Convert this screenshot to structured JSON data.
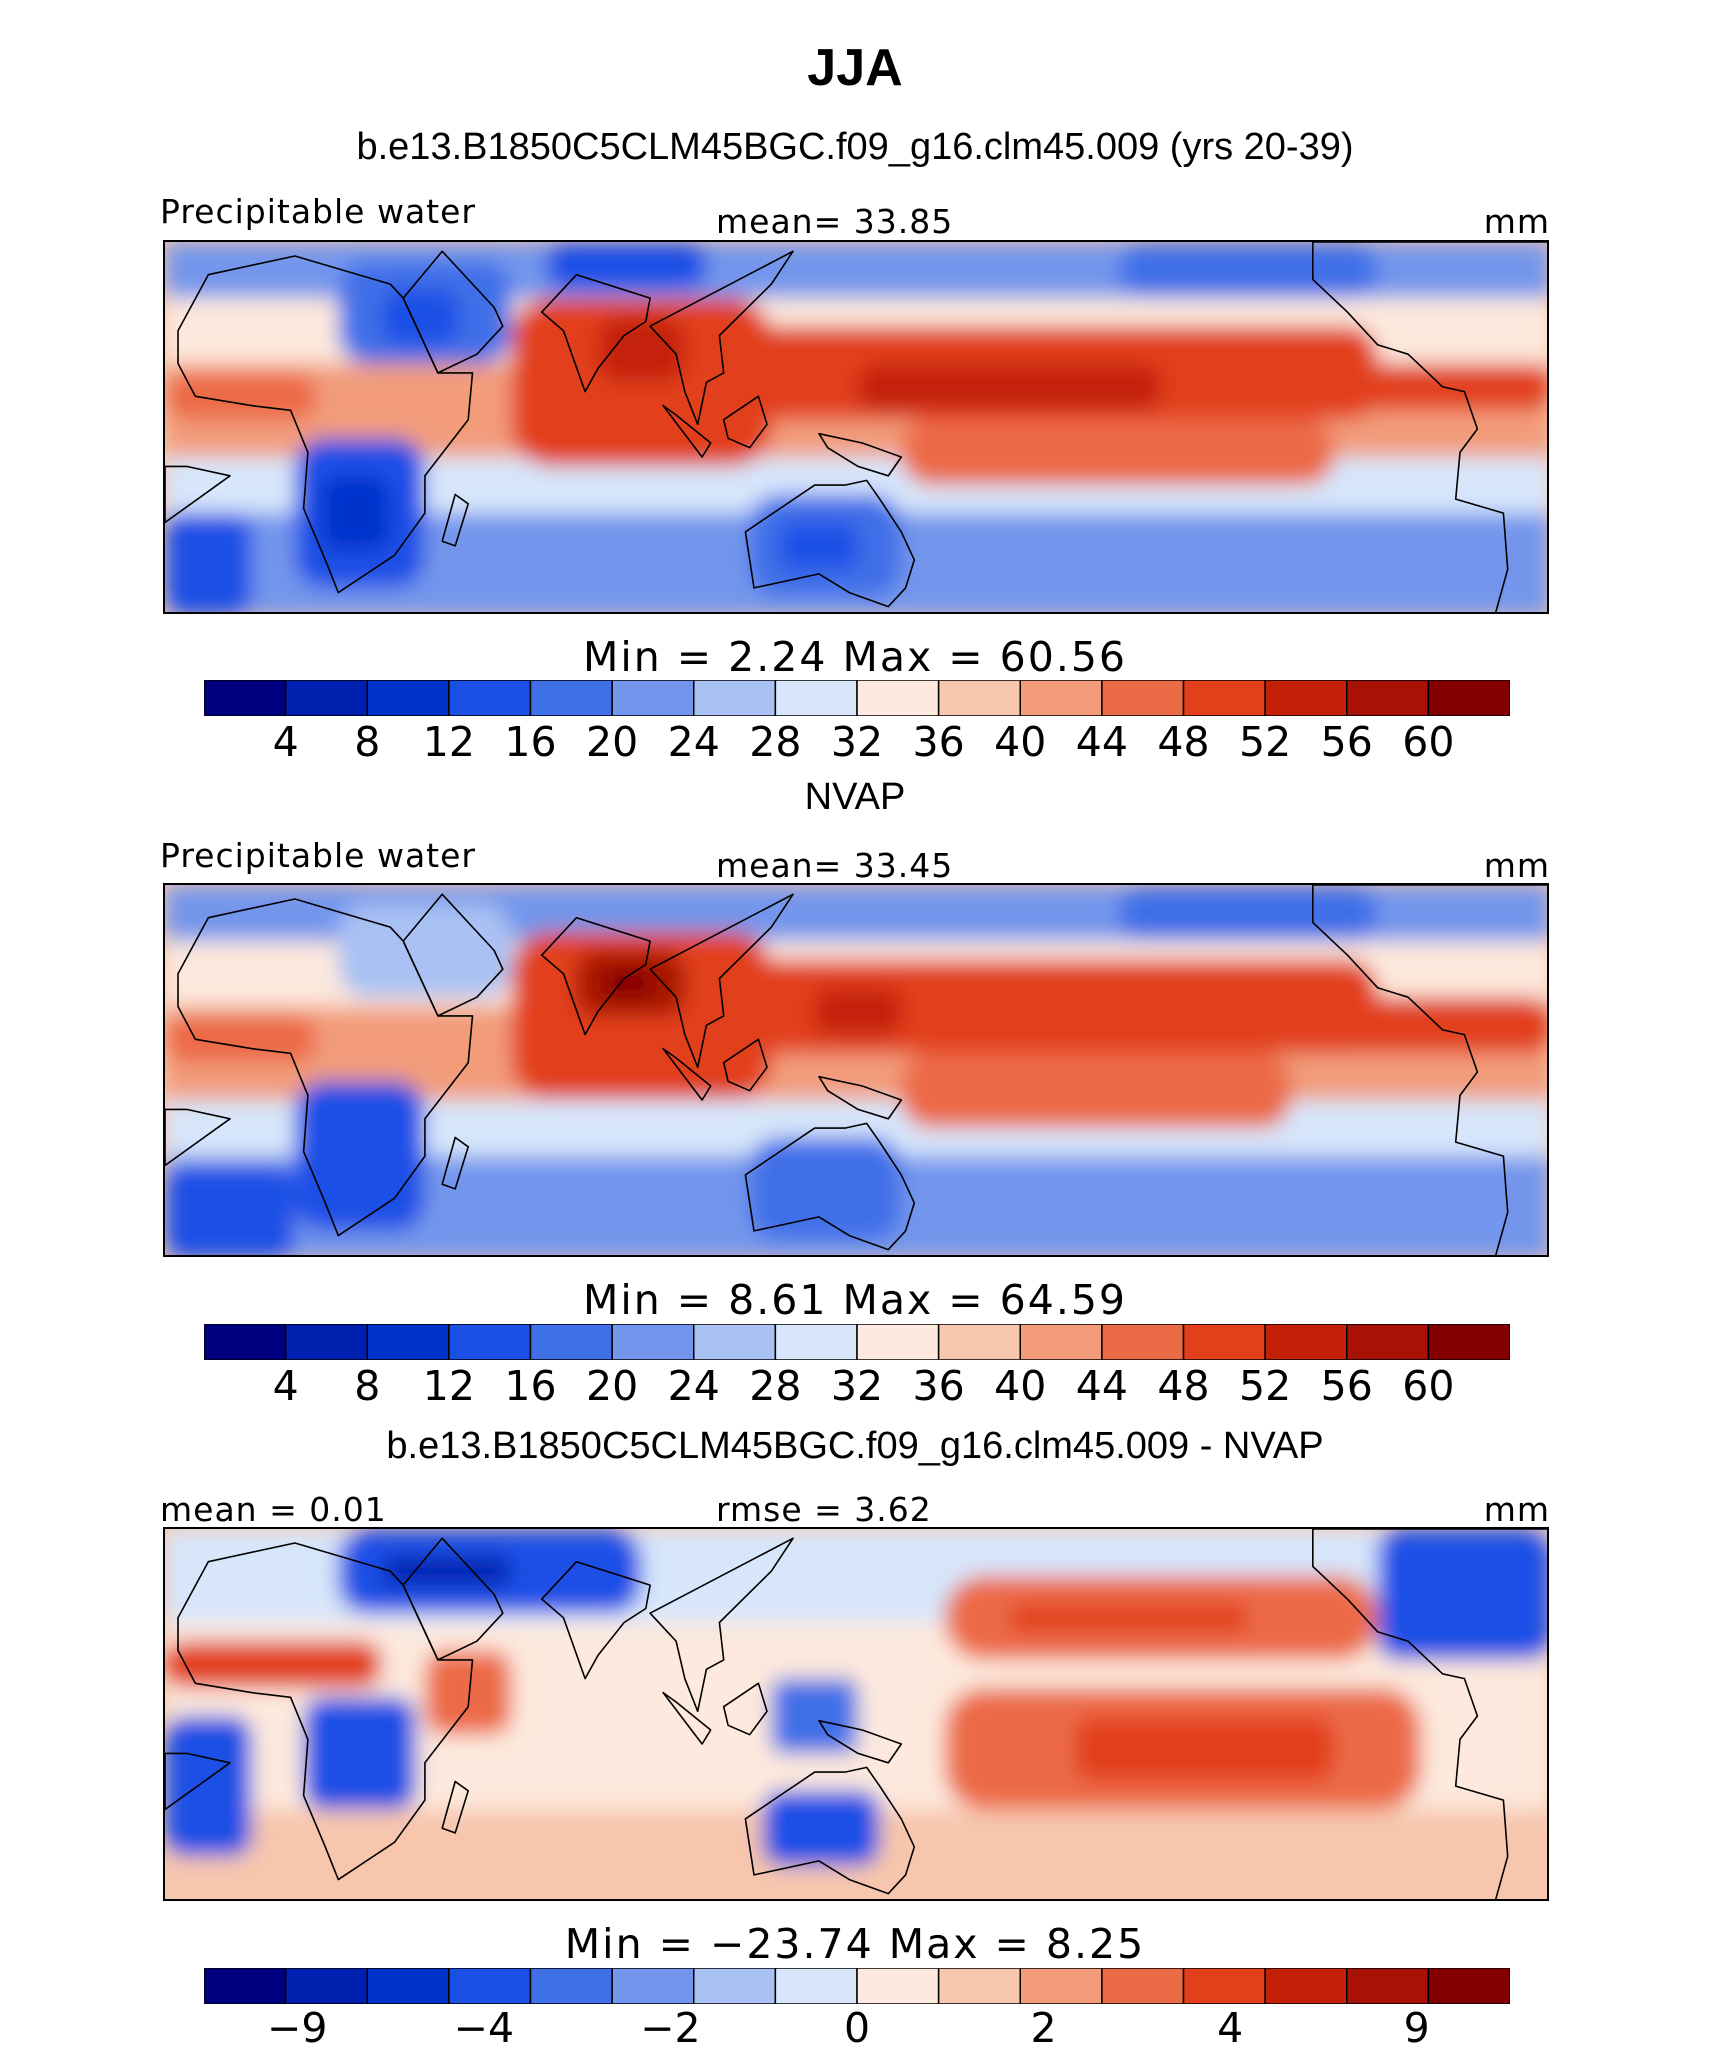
{
  "title": "JJA",
  "chart_data": [
    {
      "type": "heatmap",
      "panel_title": "b.e13.B1850C5CLM45BGC.f09_g16.clm45.009 (yrs 20-39)",
      "left_label": "Precipitable water",
      "center_label": "mean=   33.85",
      "units": "mm",
      "stats_label": "Min  =    2.24  Max  =   60.56",
      "min": 2.24,
      "max": 60.56,
      "mean": 33.85,
      "colorbar_levels": [
        "4",
        "8",
        "12",
        "16",
        "20",
        "24",
        "28",
        "32",
        "36",
        "40",
        "44",
        "48",
        "52",
        "56",
        "60"
      ],
      "colors": [
        "#00007f",
        "#0021b0",
        "#0033cc",
        "#1a4fe6",
        "#4070e8",
        "#7396ec",
        "#a9c1f3",
        "#d7e6fb",
        "#fde9dd",
        "#f7c6ad",
        "#f29c7a",
        "#ec6b47",
        "#e2401a",
        "#c42008",
        "#a81206",
        "#840000"
      ]
    },
    {
      "type": "heatmap",
      "panel_title": "NVAP",
      "left_label": "Precipitable water",
      "center_label": "mean=   33.45",
      "units": "mm",
      "stats_label": "Min  =    8.61  Max  =   64.59",
      "min": 8.61,
      "max": 64.59,
      "mean": 33.45,
      "colorbar_levels": [
        "4",
        "8",
        "12",
        "16",
        "20",
        "24",
        "28",
        "32",
        "36",
        "40",
        "44",
        "48",
        "52",
        "56",
        "60"
      ],
      "colors": [
        "#00007f",
        "#0021b0",
        "#0033cc",
        "#1a4fe6",
        "#4070e8",
        "#7396ec",
        "#a9c1f3",
        "#d7e6fb",
        "#fde9dd",
        "#f7c6ad",
        "#f29c7a",
        "#ec6b47",
        "#e2401a",
        "#c42008",
        "#a81206",
        "#840000"
      ]
    },
    {
      "type": "heatmap",
      "panel_title": "b.e13.B1850C5CLM45BGC.f09_g16.clm45.009 - NVAP",
      "left_label": "mean =    0.01",
      "center_label": "rmse =    3.62",
      "units": "mm",
      "stats_label": "Min  = −23.74  Max  =    8.25",
      "min": -23.74,
      "max": 8.25,
      "mean": 0.01,
      "rmse": 3.62,
      "colorbar_levels": [
        "−9",
        "",
        "−4",
        "",
        "−2",
        "",
        "0",
        "",
        "2",
        "",
        "4",
        "",
        "9"
      ],
      "colors": [
        "#00007f",
        "#0021b0",
        "#0033cc",
        "#1a4fe6",
        "#4070e8",
        "#7396ec",
        "#a9c1f3",
        "#d7e6fb",
        "#fde9dd",
        "#f7c6ad",
        "#f29c7a",
        "#ec6b47",
        "#e2401a",
        "#c42008",
        "#a81206",
        "#840000"
      ]
    }
  ]
}
